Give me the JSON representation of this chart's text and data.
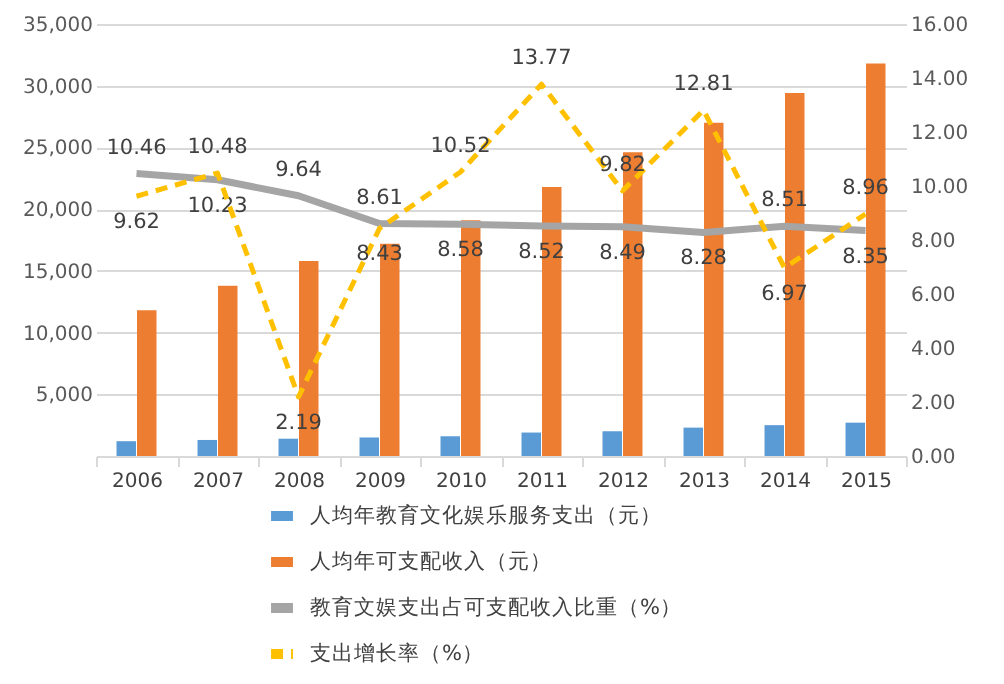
{
  "chart_data": {
    "type": "bar",
    "categories": [
      "2006",
      "2007",
      "2008",
      "2009",
      "2010",
      "2011",
      "2012",
      "2013",
      "2014",
      "2015"
    ],
    "series": [
      {
        "name": "人均年教育文化娱乐服务支出（元）",
        "color": "#5b9bd5",
        "values": [
          1200,
          1300,
          1400,
          1500,
          1600,
          1900,
          2000,
          2300,
          2500,
          2700
        ]
      },
      {
        "name": "人均年可支配收入（元）",
        "color": "#ed7d31",
        "values": [
          11800,
          13800,
          15800,
          17200,
          19100,
          21800,
          24600,
          27000,
          29400,
          31800
        ]
      },
      {
        "name": "教育文娱支出占可支配收入比重（%）",
        "type": "line",
        "axis": "y2",
        "color": "#a5a5a5",
        "line_style": "solid",
        "values": [
          10.46,
          10.23,
          9.64,
          8.61,
          8.58,
          8.52,
          8.49,
          8.28,
          8.51,
          8.35
        ],
        "value_labels": [
          "10.46",
          "10.23",
          "9.64",
          "8.61",
          "8.58",
          "8.52",
          "8.49",
          "8.28",
          "8.51",
          "8.35"
        ]
      },
      {
        "name": "支出增长率（%）",
        "type": "line",
        "axis": "y2",
        "color": "#ffc000",
        "line_style": "dashed",
        "values": [
          9.62,
          10.48,
          2.19,
          8.43,
          10.52,
          13.77,
          9.82,
          12.81,
          6.97,
          8.96
        ],
        "value_labels": [
          "9.62",
          "10.48",
          "2.19",
          "8.43",
          "10.52",
          "13.77",
          "9.82",
          "12.81",
          "6.97",
          "8.96"
        ]
      }
    ],
    "ylim": [
      0,
      35000
    ],
    "yticks": [
      {
        "value": 5000,
        "label": "5,000"
      },
      {
        "value": 10000,
        "label": "10,000"
      },
      {
        "value": 15000,
        "label": "15,000"
      },
      {
        "value": 20000,
        "label": "20,000"
      },
      {
        "value": 25000,
        "label": "25,000"
      },
      {
        "value": 30000,
        "label": "30,000"
      },
      {
        "value": 35000,
        "label": "35,000"
      }
    ],
    "y2lim": [
      0,
      16
    ],
    "y2ticks": [
      {
        "value": 0,
        "label": "0.00"
      },
      {
        "value": 2,
        "label": "2.00"
      },
      {
        "value": 4,
        "label": "4.00"
      },
      {
        "value": 6,
        "label": "6.00"
      },
      {
        "value": 8,
        "label": "8.00"
      },
      {
        "value": 10,
        "label": "10.00"
      },
      {
        "value": 12,
        "label": "12.00"
      },
      {
        "value": 14,
        "label": "14.00"
      },
      {
        "value": 16,
        "label": "16.00"
      }
    ],
    "grid": "y",
    "legend": "bottom"
  }
}
